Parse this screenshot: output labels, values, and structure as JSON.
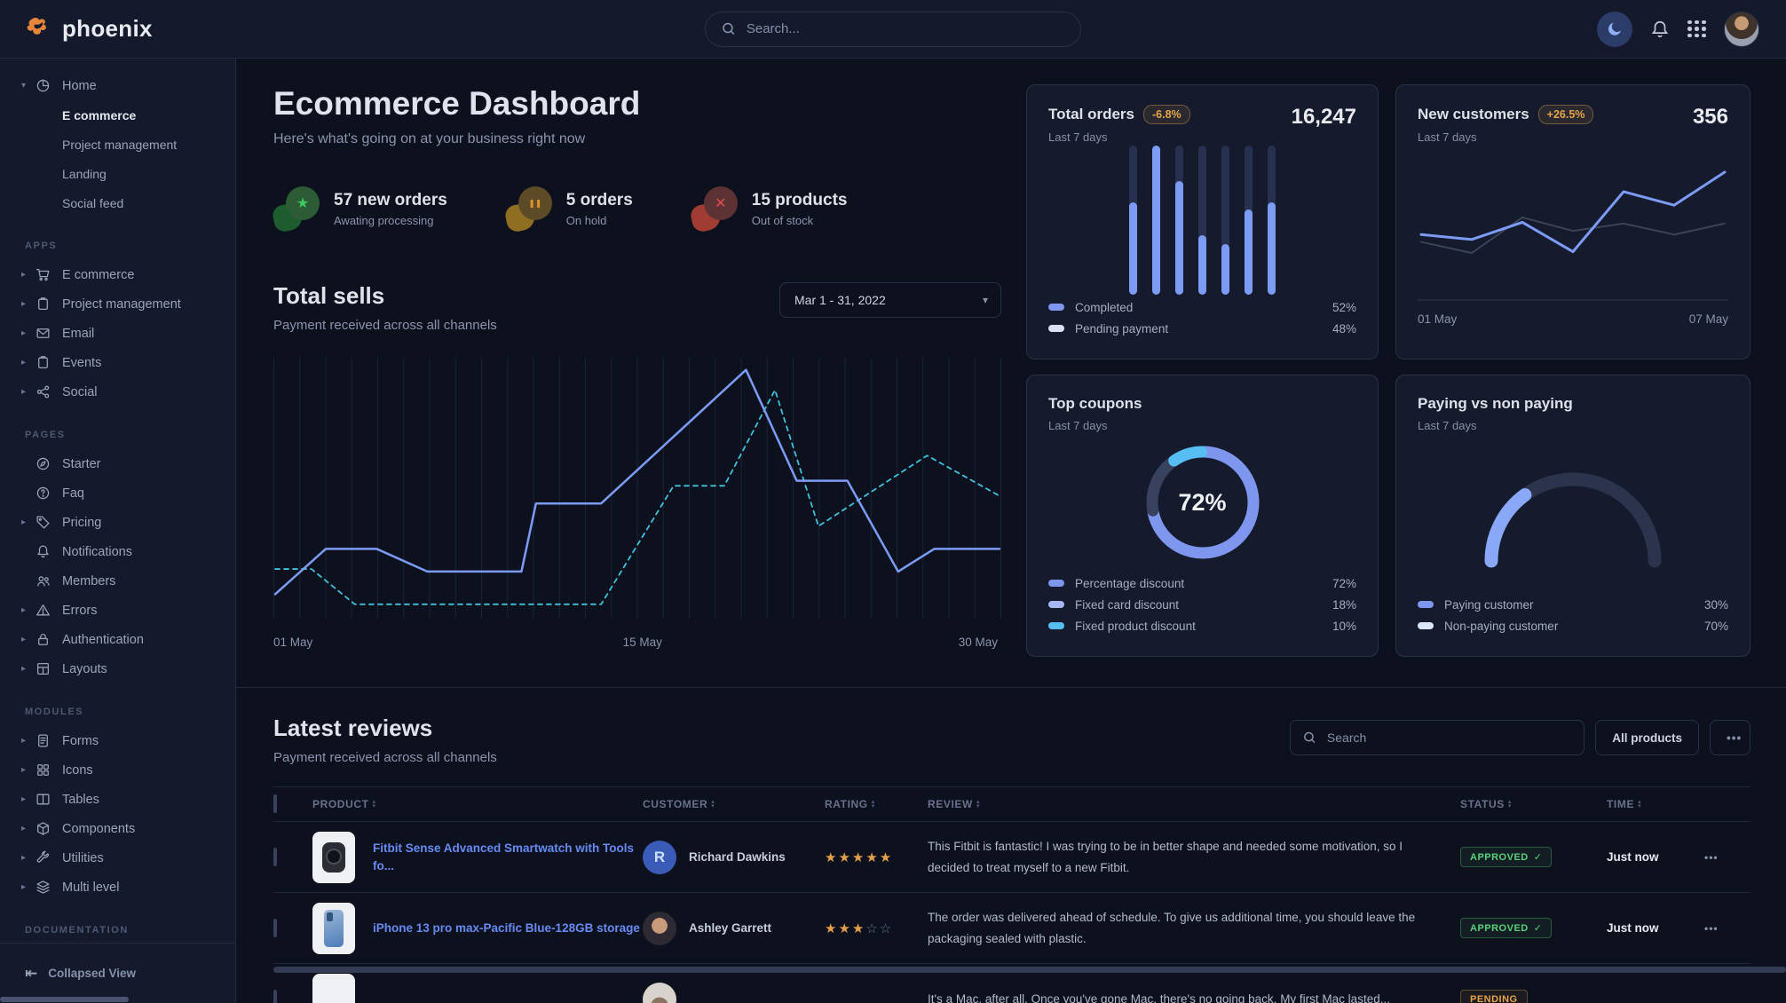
{
  "navbar": {
    "brand": "phoenix",
    "search_placeholder": "Search..."
  },
  "sidebar": {
    "home": {
      "label": "Home",
      "icon": "pie-chart-icon",
      "children": [
        "E commerce",
        "Project management",
        "Landing",
        "Social feed"
      ],
      "active_child": "E commerce"
    },
    "sections": [
      {
        "title": "APPS",
        "items": [
          {
            "label": "E commerce",
            "icon": "cart-icon",
            "caret": true
          },
          {
            "label": "Project management",
            "icon": "clipboard-icon",
            "caret": true
          },
          {
            "label": "Email",
            "icon": "envelope-icon",
            "caret": true
          },
          {
            "label": "Events",
            "icon": "clipboard-icon",
            "caret": true
          },
          {
            "label": "Social",
            "icon": "share-icon",
            "caret": true
          }
        ]
      },
      {
        "title": "PAGES",
        "items": [
          {
            "label": "Starter",
            "icon": "compass-icon",
            "caret": false
          },
          {
            "label": "Faq",
            "icon": "question-icon",
            "caret": false
          },
          {
            "label": "Pricing",
            "icon": "tag-icon",
            "caret": true
          },
          {
            "label": "Notifications",
            "icon": "bell-icon",
            "caret": false
          },
          {
            "label": "Members",
            "icon": "people-icon",
            "caret": false
          },
          {
            "label": "Errors",
            "icon": "warning-icon",
            "caret": true
          },
          {
            "label": "Authentication",
            "icon": "lock-icon",
            "caret": true
          },
          {
            "label": "Layouts",
            "icon": "layout-icon",
            "caret": true
          }
        ]
      },
      {
        "title": "MODULES",
        "items": [
          {
            "label": "Forms",
            "icon": "document-icon",
            "caret": true
          },
          {
            "label": "Icons",
            "icon": "grid-icon",
            "caret": true
          },
          {
            "label": "Tables",
            "icon": "table-icon",
            "caret": true
          },
          {
            "label": "Components",
            "icon": "box-icon",
            "caret": true
          },
          {
            "label": "Utilities",
            "icon": "wrench-icon",
            "caret": true
          },
          {
            "label": "Multi level",
            "icon": "layers-icon",
            "caret": true
          }
        ]
      },
      {
        "title": "DOCUMENTATION",
        "items": []
      }
    ],
    "collapse_label": "Collapsed View"
  },
  "header": {
    "title": "Ecommerce Dashboard",
    "subtitle": "Here's what's going on at your business right now"
  },
  "stats": [
    {
      "label": "57 new orders",
      "sub": "Awating processing",
      "icon": "star-icon",
      "glyph": "★",
      "circle_bg": "#2c5b36",
      "glyph_color": "#39cd63",
      "blob": "#1d5c2c"
    },
    {
      "label": "5 orders",
      "sub": "On hold",
      "icon": "pause-icon",
      "glyph": "❚❚",
      "circle_bg": "#5d4b28",
      "glyph_color": "#e0912d",
      "blob": "#8f6e22"
    },
    {
      "label": "15 products",
      "sub": "Out of stock",
      "icon": "x-icon",
      "glyph": "✕",
      "circle_bg": "#5c3234",
      "glyph_color": "#e04f4f",
      "blob": "#a03c31"
    }
  ],
  "total_sells": {
    "title": "Total sells",
    "subtitle": "Payment received across all channels",
    "date_range": "Mar 1 - 31, 2022",
    "chart_data": {
      "type": "line",
      "x_ticks": [
        "01 May",
        "15 May",
        "30 May"
      ],
      "grid_lines": 29,
      "grid_color": "#1c2334",
      "series": [
        {
          "name": "dashed-secondary",
          "color": "#40c1dc",
          "width": 1.8,
          "dash": "5 5",
          "points": [
            [
              0,
              19
            ],
            [
              5,
              19
            ],
            [
              11,
              5
            ],
            [
              45,
              5
            ],
            [
              55,
              52
            ],
            [
              62,
              52
            ],
            [
              69,
              90
            ],
            [
              75,
              36
            ],
            [
              90,
              64
            ],
            [
              100,
              48
            ]
          ]
        },
        {
          "name": "solid-primary",
          "color": "#7c9bf5",
          "width": 2.5,
          "dash": null,
          "points": [
            [
              0,
              9
            ],
            [
              7,
              27
            ],
            [
              14,
              27
            ],
            [
              21,
              18
            ],
            [
              34,
              18
            ],
            [
              36,
              45
            ],
            [
              45,
              45
            ],
            [
              65,
              98
            ],
            [
              72,
              54
            ],
            [
              79,
              54
            ],
            [
              86,
              18
            ],
            [
              91,
              27
            ],
            [
              100,
              27
            ]
          ]
        }
      ]
    }
  },
  "cards": {
    "total_orders": {
      "title": "Total orders",
      "badge": "-6.8%",
      "sub": "Last 7 days",
      "value": "16,247",
      "chart_data": {
        "type": "bar",
        "values": [
          62,
          100,
          76,
          40,
          34,
          57,
          62
        ],
        "ylim": [
          0,
          100
        ],
        "fill": "#7c9bf5",
        "track": "#27304e"
      },
      "legend": [
        {
          "label": "Completed",
          "pct": "52%",
          "color": "#7e96ee"
        },
        {
          "label": "Pending payment",
          "pct": "48%",
          "color": "#d8e1f5"
        }
      ]
    },
    "new_customers": {
      "title": "New customers",
      "badge": "+26.5%",
      "sub": "Last 7 days",
      "value": "356",
      "chart_data": {
        "type": "line",
        "x_ticks": [
          "01 May",
          "07 May"
        ],
        "series": [
          {
            "name": "previous",
            "color": "#3b4357",
            "width": 2,
            "values": [
              38,
              29,
              58,
              47,
              53,
              44,
              53
            ]
          },
          {
            "name": "current",
            "color": "#7c9bf5",
            "width": 3,
            "values": [
              44,
              40,
              54,
              30,
              79,
              68,
              95
            ]
          }
        ]
      }
    },
    "top_coupons": {
      "title": "Top coupons",
      "sub": "Last 7 days",
      "center_label": "72%",
      "chart_data": {
        "type": "pie",
        "segments": [
          {
            "label": "Percentage discount",
            "value": 72,
            "chart_color": "#7e96ee",
            "legend_color": "#7e96ee"
          },
          {
            "label": "Fixed card discount",
            "value": 18,
            "chart_color": "#38415e",
            "legend_color": "#a7b8f4"
          },
          {
            "label": "Fixed product discount",
            "value": 10,
            "chart_color": "#57bef3",
            "legend_color": "#57bef3"
          }
        ]
      }
    },
    "paying": {
      "title": "Paying vs non paying",
      "sub": "Last 7 days",
      "chart_data": {
        "type": "gauge",
        "segments": [
          {
            "label": "Paying customer",
            "value": 30,
            "chart_color": "#8aa8f8",
            "legend_color": "#7e96ee"
          },
          {
            "label": "Non-paying customer",
            "value": 70,
            "chart_color": "#2c344d",
            "legend_color": "#dbe4f8"
          }
        ]
      }
    }
  },
  "reviews": {
    "title": "Latest reviews",
    "subtitle": "Payment received across all channels",
    "search_placeholder": "Search",
    "filter_label": "All products",
    "more_label": "•••",
    "columns": [
      "PRODUCT",
      "CUSTOMER",
      "RATING",
      "REVIEW",
      "STATUS",
      "TIME"
    ],
    "rows": [
      {
        "product": "Fitbit Sense Advanced Smartwatch with Tools fo...",
        "thumb": "watch",
        "customer": "Richard Dawkins",
        "avatar": "initial",
        "initial": "R",
        "rating": 5,
        "review": "This Fitbit is fantastic! I was trying to be in better shape and needed some motivation, so I decided to treat myself to a new Fitbit.",
        "status": "APPROVED",
        "status_kind": "approved",
        "check": "✓",
        "time": "Just now"
      },
      {
        "product": "iPhone 13 pro max-Pacific Blue-128GB storage",
        "thumb": "phone",
        "customer": "Ashley Garrett",
        "avatar": "photo-f1",
        "rating": 3,
        "review": "The order was delivered ahead of schedule. To give us additional time, you should leave the packaging sealed with plastic.",
        "status": "APPROVED",
        "status_kind": "approved",
        "check": "✓",
        "time": "Just now"
      },
      {
        "product": "",
        "thumb": "laptop",
        "customer": "",
        "avatar": "photo-f2",
        "rating": 0,
        "review": "It's a Mac, after all. Once you've gone Mac, there's no going back. My first Mac lasted...",
        "status": "PENDING",
        "status_kind": "pending",
        "check": "",
        "time": ""
      }
    ]
  }
}
